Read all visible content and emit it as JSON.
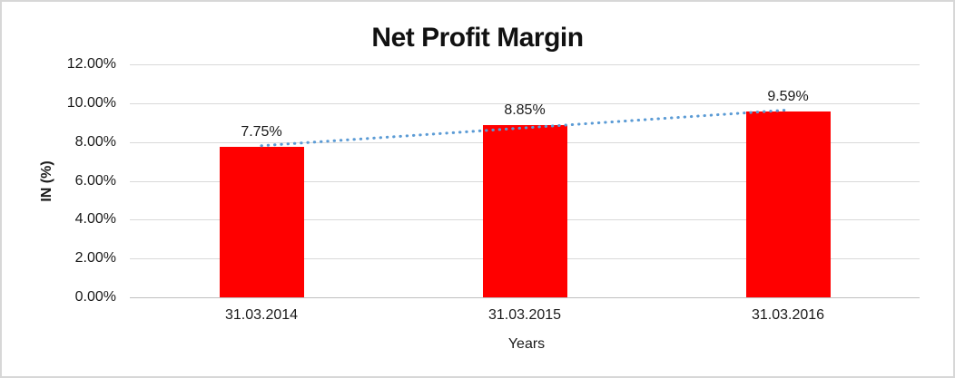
{
  "chart_data": {
    "type": "bar",
    "title": "Net Profit Margin",
    "categories": [
      "31.03.2014",
      "31.03.2015",
      "31.03.2016"
    ],
    "values": [
      7.75,
      8.85,
      9.59
    ],
    "data_labels": [
      "7.75%",
      "8.85%",
      "9.59%"
    ],
    "xlabel": "Years",
    "ylabel": "IN (%)",
    "ylim": [
      0,
      12
    ],
    "ytick_step": 2,
    "ytick_labels": [
      "0.00%",
      "2.00%",
      "4.00%",
      "6.00%",
      "8.00%",
      "10.00%",
      "12.00%"
    ],
    "grid": true,
    "legend": false,
    "bar_color": "#FF0000",
    "gridline_color": "#d9d9d9",
    "trendline": {
      "type": "linear",
      "style": "dotted",
      "color": "#5B9BD5",
      "fitted_endpoints": [
        7.81,
        9.65
      ]
    }
  }
}
